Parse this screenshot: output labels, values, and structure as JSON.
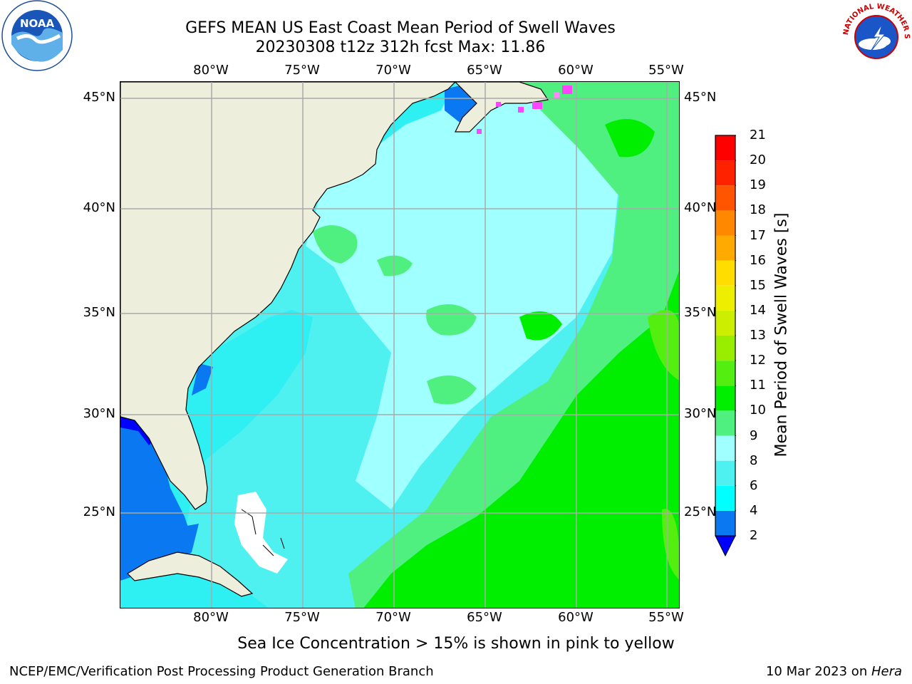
{
  "title": {
    "line1": "GEFS MEAN US East Coast Mean Period of Swell Waves",
    "line2": "20230308 t12z 312h fcst   Max: 11.86"
  },
  "map": {
    "lon_ticks": [
      "80°W",
      "75°W",
      "70°W",
      "65°W",
      "60°W",
      "55°W"
    ],
    "lat_ticks": [
      "45°N",
      "40°N",
      "35°N",
      "30°N",
      "25°N"
    ],
    "grid": true,
    "land_color": "#eeeedc",
    "ice_color": "#ff44ff"
  },
  "colorbar": {
    "title": "Mean Period of Swell Waves [s]",
    "levels": [
      "2",
      "4",
      "6",
      "8",
      "9",
      "10",
      "11",
      "12",
      "13",
      "14",
      "15",
      "16",
      "17",
      "18",
      "19",
      "20",
      "21"
    ],
    "colors": [
      "#0000ff",
      "#0a78f0",
      "#00ffff",
      "#4ef0f0",
      "#a0ffff",
      "#50f080",
      "#00ee00",
      "#55ee11",
      "#99ee00",
      "#ccee00",
      "#eeee00",
      "#ffdd00",
      "#ffaa00",
      "#ff8800",
      "#ff5500",
      "#ff2200",
      "#ff0000"
    ],
    "extend": "min"
  },
  "note": "Sea Ice Concentration > 15% is shown in pink to yellow",
  "footer": {
    "left": "NCEP/EMC/Verification Post Processing Product Generation Branch",
    "date": "10 Mar 2023 on ",
    "host": "Hera"
  },
  "logos": {
    "noaa": "NOAA",
    "nws": "NATIONAL WEATHER SERVICE"
  }
}
